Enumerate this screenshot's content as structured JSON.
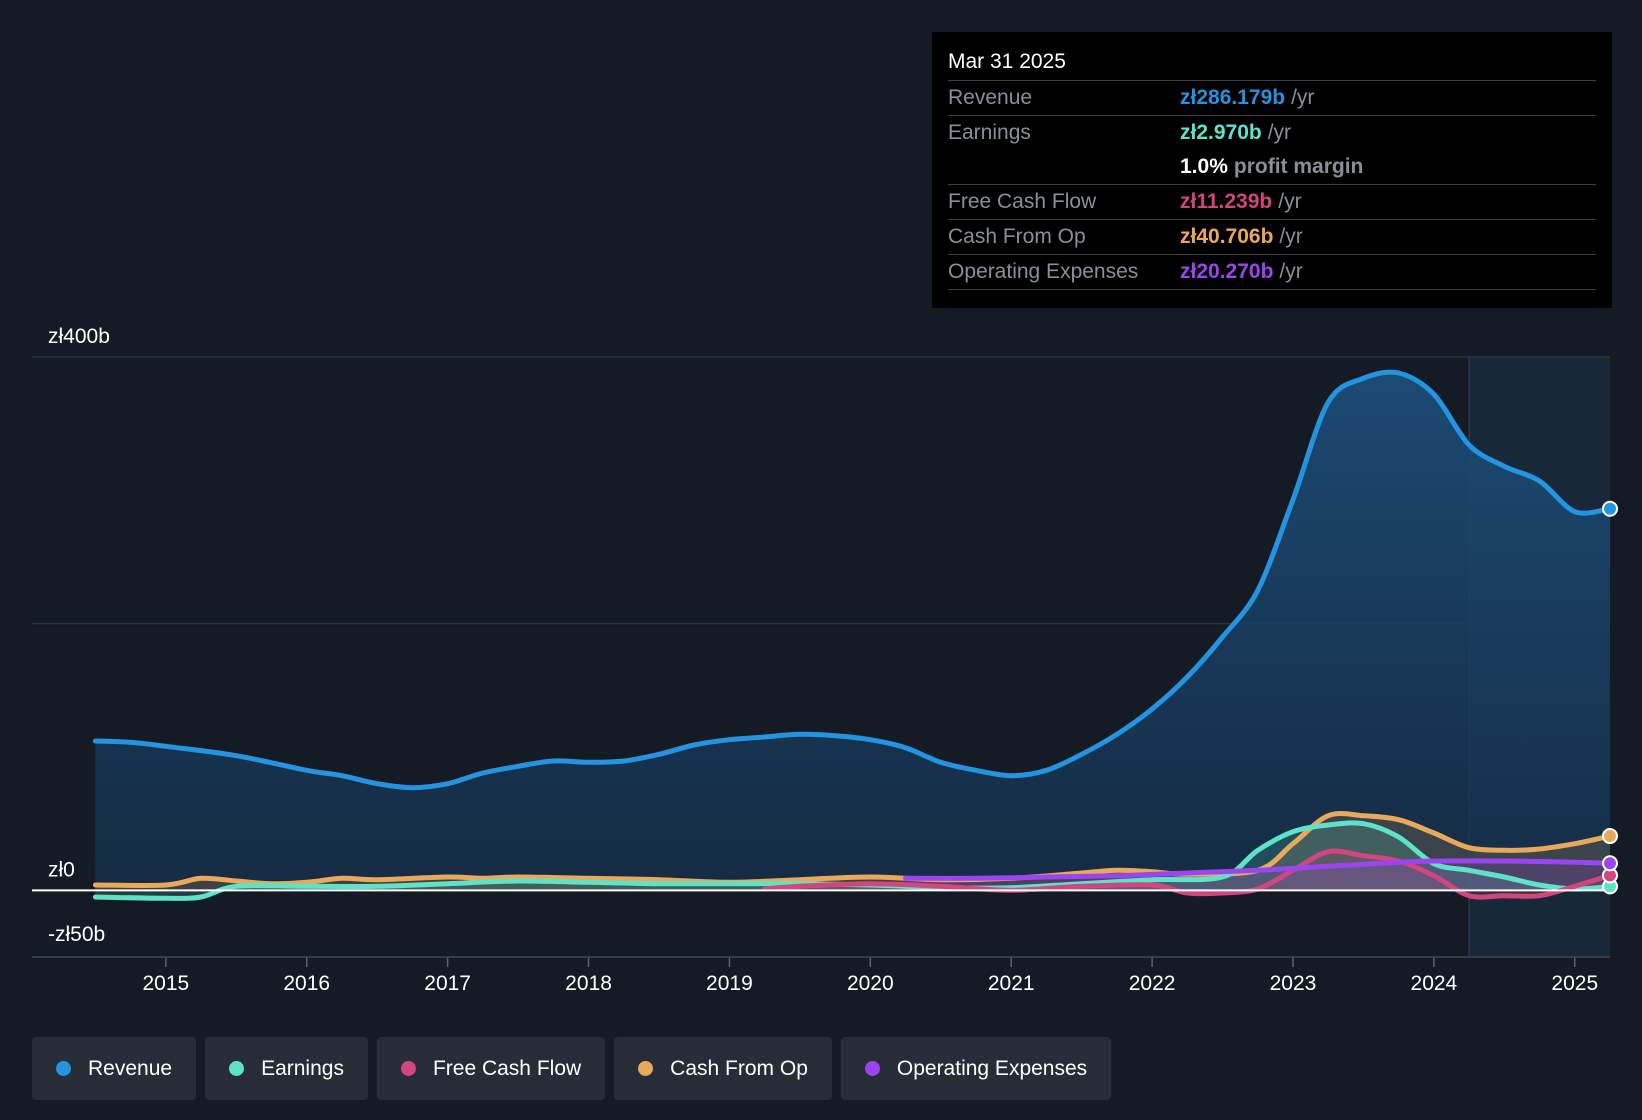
{
  "tooltip": {
    "date": "Mar 31 2025",
    "revenue_label": "Revenue",
    "revenue_value": "zł286.179b",
    "revenue_unit": "/yr",
    "earnings_label": "Earnings",
    "earnings_value": "zł2.970b",
    "earnings_unit": "/yr",
    "margin_value": "1.0%",
    "margin_label": "profit margin",
    "fcf_label": "Free Cash Flow",
    "fcf_value": "zł11.239b",
    "fcf_unit": "/yr",
    "cfo_label": "Cash From Op",
    "cfo_value": "zł40.706b",
    "cfo_unit": "/yr",
    "opex_label": "Operating Expenses",
    "opex_value": "zł20.270b",
    "opex_unit": "/yr"
  },
  "legend": [
    {
      "label": "Revenue",
      "color": "#2394df"
    },
    {
      "label": "Earnings",
      "color": "#5fe3c8"
    },
    {
      "label": "Free Cash Flow",
      "color": "#d1467c"
    },
    {
      "label": "Cash From Op",
      "color": "#e8a95a"
    },
    {
      "label": "Operating Expenses",
      "color": "#9b45f0"
    }
  ],
  "chart_data": {
    "type": "line",
    "title": "",
    "xlabel": "",
    "ylabel": "",
    "ylim": [
      -50,
      400
    ],
    "ytick_labels": [
      {
        "value": 400,
        "label": "zł400b"
      },
      {
        "value": 0,
        "label": "zł0"
      },
      {
        "value": -50,
        "label": "-zł50b"
      }
    ],
    "gridlines": [
      400,
      200,
      0,
      -50
    ],
    "xlim": [
      2014.05,
      2025.25
    ],
    "xticks": [
      2015,
      2016,
      2017,
      2018,
      2019,
      2020,
      2021,
      2022,
      2023,
      2024,
      2025
    ],
    "forecast_start": 2024.25,
    "series": [
      {
        "name": "Revenue",
        "color": "#2394df",
        "fill": true,
        "points": [
          [
            2014.5,
            112
          ],
          [
            2014.75,
            111
          ],
          [
            2015,
            108
          ],
          [
            2015.5,
            101
          ],
          [
            2016,
            90
          ],
          [
            2016.25,
            86
          ],
          [
            2016.5,
            80
          ],
          [
            2016.75,
            77
          ],
          [
            2017,
            80
          ],
          [
            2017.25,
            88
          ],
          [
            2017.5,
            93
          ],
          [
            2017.75,
            97
          ],
          [
            2018,
            96
          ],
          [
            2018.25,
            97
          ],
          [
            2018.5,
            102
          ],
          [
            2018.75,
            109
          ],
          [
            2019,
            113
          ],
          [
            2019.25,
            115
          ],
          [
            2019.5,
            117
          ],
          [
            2019.75,
            116
          ],
          [
            2020,
            113
          ],
          [
            2020.25,
            107
          ],
          [
            2020.5,
            96
          ],
          [
            2020.75,
            90
          ],
          [
            2021,
            86
          ],
          [
            2021.25,
            90
          ],
          [
            2021.5,
            102
          ],
          [
            2021.75,
            117
          ],
          [
            2022,
            136
          ],
          [
            2022.25,
            160
          ],
          [
            2022.5,
            190
          ],
          [
            2022.75,
            225
          ],
          [
            2023,
            293
          ],
          [
            2023.25,
            366
          ],
          [
            2023.5,
            384
          ],
          [
            2023.75,
            388
          ],
          [
            2024,
            372
          ],
          [
            2024.25,
            334
          ],
          [
            2024.5,
            318
          ],
          [
            2024.75,
            307
          ],
          [
            2025,
            284
          ],
          [
            2025.25,
            286.179
          ]
        ]
      },
      {
        "name": "Earnings",
        "color": "#5fe3c8",
        "fill": true,
        "points": [
          [
            2014.5,
            -5
          ],
          [
            2015,
            -6
          ],
          [
            2015.25,
            -5
          ],
          [
            2015.5,
            3
          ],
          [
            2016,
            3
          ],
          [
            2016.5,
            3
          ],
          [
            2017,
            5
          ],
          [
            2017.5,
            7
          ],
          [
            2018,
            6
          ],
          [
            2018.5,
            5
          ],
          [
            2019,
            5
          ],
          [
            2019.5,
            5
          ],
          [
            2020,
            4
          ],
          [
            2020.5,
            2
          ],
          [
            2021,
            2
          ],
          [
            2021.5,
            5
          ],
          [
            2022,
            8
          ],
          [
            2022.5,
            10
          ],
          [
            2022.75,
            30
          ],
          [
            2023,
            44
          ],
          [
            2023.25,
            49
          ],
          [
            2023.5,
            50
          ],
          [
            2023.75,
            40
          ],
          [
            2024,
            20
          ],
          [
            2024.25,
            15
          ],
          [
            2024.5,
            10
          ],
          [
            2024.75,
            4
          ],
          [
            2025,
            1
          ],
          [
            2025.25,
            2.97
          ]
        ]
      },
      {
        "name": "Free Cash Flow",
        "color": "#d1467c",
        "fill": true,
        "points": [
          [
            2019.25,
            1
          ],
          [
            2019.5,
            3
          ],
          [
            2020,
            5
          ],
          [
            2020.5,
            3
          ],
          [
            2021,
            0
          ],
          [
            2021.5,
            3
          ],
          [
            2022,
            4
          ],
          [
            2022.25,
            -2
          ],
          [
            2022.5,
            -2
          ],
          [
            2022.75,
            1
          ],
          [
            2023,
            15
          ],
          [
            2023.25,
            29
          ],
          [
            2023.5,
            26
          ],
          [
            2023.75,
            22
          ],
          [
            2024,
            11
          ],
          [
            2024.25,
            -4
          ],
          [
            2024.5,
            -4
          ],
          [
            2024.75,
            -4
          ],
          [
            2025,
            3
          ],
          [
            2025.25,
            11.239
          ]
        ]
      },
      {
        "name": "Cash From Op",
        "color": "#e8a95a",
        "fill": true,
        "points": [
          [
            2014.5,
            4
          ],
          [
            2015,
            4
          ],
          [
            2015.25,
            9
          ],
          [
            2015.5,
            7
          ],
          [
            2015.75,
            5
          ],
          [
            2016,
            6
          ],
          [
            2016.25,
            9
          ],
          [
            2016.5,
            8
          ],
          [
            2017,
            10
          ],
          [
            2017.25,
            9
          ],
          [
            2017.5,
            10
          ],
          [
            2018,
            9
          ],
          [
            2018.5,
            8
          ],
          [
            2019,
            6
          ],
          [
            2019.5,
            8
          ],
          [
            2020,
            10
          ],
          [
            2020.5,
            8
          ],
          [
            2021,
            9
          ],
          [
            2021.5,
            13
          ],
          [
            2021.75,
            15
          ],
          [
            2022,
            14
          ],
          [
            2022.25,
            12
          ],
          [
            2022.75,
            15
          ],
          [
            2023,
            35
          ],
          [
            2023.25,
            56
          ],
          [
            2023.5,
            56
          ],
          [
            2023.75,
            53
          ],
          [
            2024,
            43
          ],
          [
            2024.25,
            32
          ],
          [
            2024.5,
            30
          ],
          [
            2024.75,
            31
          ],
          [
            2025,
            35
          ],
          [
            2025.25,
            40.706
          ]
        ]
      },
      {
        "name": "Operating Expenses",
        "color": "#9b45f0",
        "fill": true,
        "points": [
          [
            2020.25,
            9
          ],
          [
            2020.75,
            9
          ],
          [
            2021.25,
            10
          ],
          [
            2021.75,
            11
          ],
          [
            2022.25,
            13
          ],
          [
            2022.75,
            15
          ],
          [
            2023.25,
            18
          ],
          [
            2023.75,
            21
          ],
          [
            2024,
            22
          ],
          [
            2024.5,
            22
          ],
          [
            2025,
            21
          ],
          [
            2025.25,
            20.27
          ]
        ]
      }
    ]
  }
}
